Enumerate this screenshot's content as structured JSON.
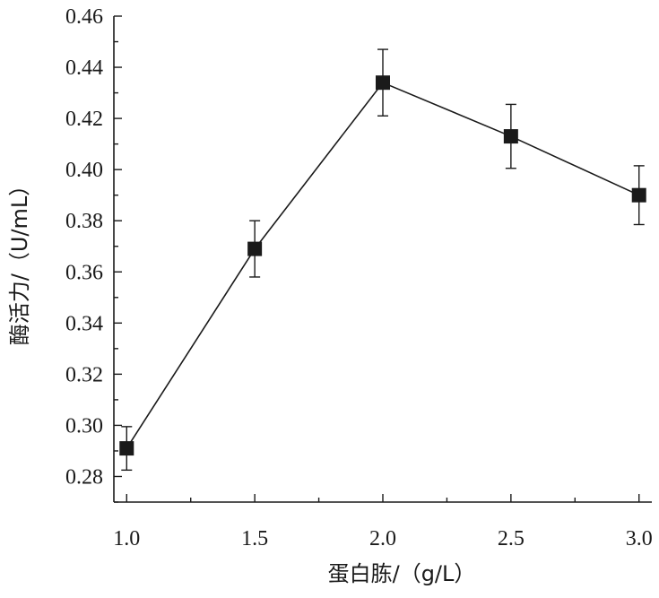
{
  "chart_data": {
    "type": "line",
    "xlabel": "蛋白胨/（g/L）",
    "ylabel": "酶活力/（U/mL）",
    "xlim": [
      0.95,
      3.05
    ],
    "ylim": [
      0.27,
      0.46
    ],
    "x_ticks": [
      1.0,
      1.5,
      2.0,
      2.5,
      3.0
    ],
    "x_tick_labels": [
      "1.0",
      "1.5",
      "2.0",
      "2.5",
      "3.0"
    ],
    "y_ticks": [
      0.28,
      0.3,
      0.32,
      0.34,
      0.36,
      0.38,
      0.4,
      0.42,
      0.44,
      0.46
    ],
    "y_tick_labels": [
      "0.28",
      "0.30",
      "0.32",
      "0.34",
      "0.36",
      "0.38",
      "0.40",
      "0.42",
      "0.44",
      "0.46"
    ],
    "grid": false,
    "marker": "square",
    "series": [
      {
        "x": [
          1.0,
          1.5,
          2.0,
          2.5,
          3.0
        ],
        "y": [
          0.291,
          0.369,
          0.434,
          0.413,
          0.39
        ],
        "error": [
          0.0085,
          0.011,
          0.013,
          0.0125,
          0.0115
        ]
      }
    ]
  }
}
